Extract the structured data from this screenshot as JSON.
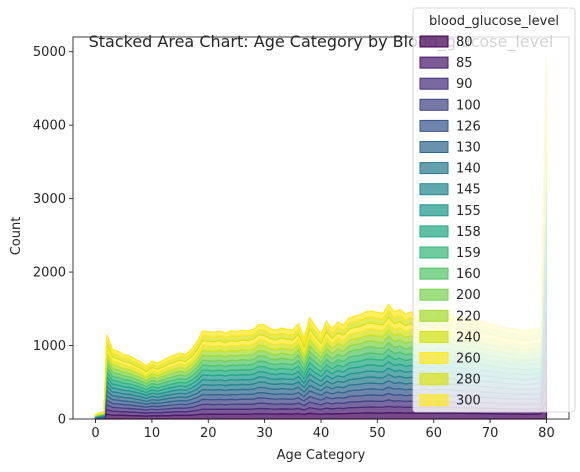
{
  "chart_data": {
    "type": "area",
    "stacked": true,
    "title": "Stacked Area Chart: Age Category by Blood_glucose_level",
    "xlabel": "Age Category",
    "ylabel": "Count",
    "xlim": [
      -4,
      84
    ],
    "ylim": [
      0,
      5200
    ],
    "xticks": [
      0,
      10,
      20,
      30,
      40,
      50,
      60,
      70,
      80
    ],
    "yticks": [
      0,
      1000,
      2000,
      3000,
      4000,
      5000
    ],
    "legend": {
      "title": "blood_glucose_level",
      "placement": "top-right",
      "entries": [
        "80",
        "85",
        "90",
        "100",
        "126",
        "130",
        "140",
        "145",
        "155",
        "158",
        "159",
        "160",
        "200",
        "220",
        "240",
        "260",
        "280",
        "300"
      ]
    },
    "colors": [
      "#440154",
      "#481a6c",
      "#472f7d",
      "#414487",
      "#39568c",
      "#31688e",
      "#2a788e",
      "#23888e",
      "#1f988b",
      "#22a884",
      "#35b779",
      "#54c568",
      "#7ad151",
      "#a5db36",
      "#d2e21b",
      "#fde725",
      "#d8e219",
      "#fde725"
    ],
    "x": [
      0,
      0.5,
      1,
      1.5,
      2,
      3,
      4,
      5,
      6,
      7,
      8,
      9,
      10,
      11,
      12,
      13,
      14,
      15,
      16,
      17,
      18,
      19,
      20,
      21,
      22,
      23,
      24,
      25,
      26,
      27,
      28,
      29,
      30,
      31,
      32,
      33,
      34,
      35,
      36,
      37,
      38,
      39,
      40,
      41,
      42,
      43,
      44,
      45,
      46,
      47,
      48,
      49,
      50,
      51,
      52,
      53,
      54,
      55,
      56,
      57,
      58,
      59,
      60,
      61,
      62,
      63,
      64,
      65,
      66,
      67,
      68,
      69,
      70,
      71,
      72,
      73,
      74,
      75,
      76,
      77,
      78,
      79,
      80
    ],
    "totals": [
      60,
      80,
      90,
      100,
      1150,
      950,
      920,
      880,
      860,
      820,
      780,
      720,
      790,
      760,
      800,
      840,
      870,
      900,
      880,
      950,
      1050,
      1200,
      1190,
      1180,
      1200,
      1170,
      1200,
      1190,
      1210,
      1200,
      1220,
      1290,
      1280,
      1230,
      1210,
      1240,
      1220,
      1210,
      1300,
      1100,
      1380,
      1260,
      1160,
      1330,
      1230,
      1320,
      1280,
      1380,
      1400,
      1420,
      1460,
      1470,
      1450,
      1440,
      1560,
      1460,
      1490,
      1430,
      1460,
      1390,
      1460,
      1430,
      1400,
      1470,
      1410,
      1430,
      1380,
      1400,
      1350,
      1380,
      1340,
      1320,
      1300,
      1280,
      1260,
      1240,
      1230,
      1220,
      1200,
      1210,
      1230,
      1250,
      4950
    ]
  }
}
